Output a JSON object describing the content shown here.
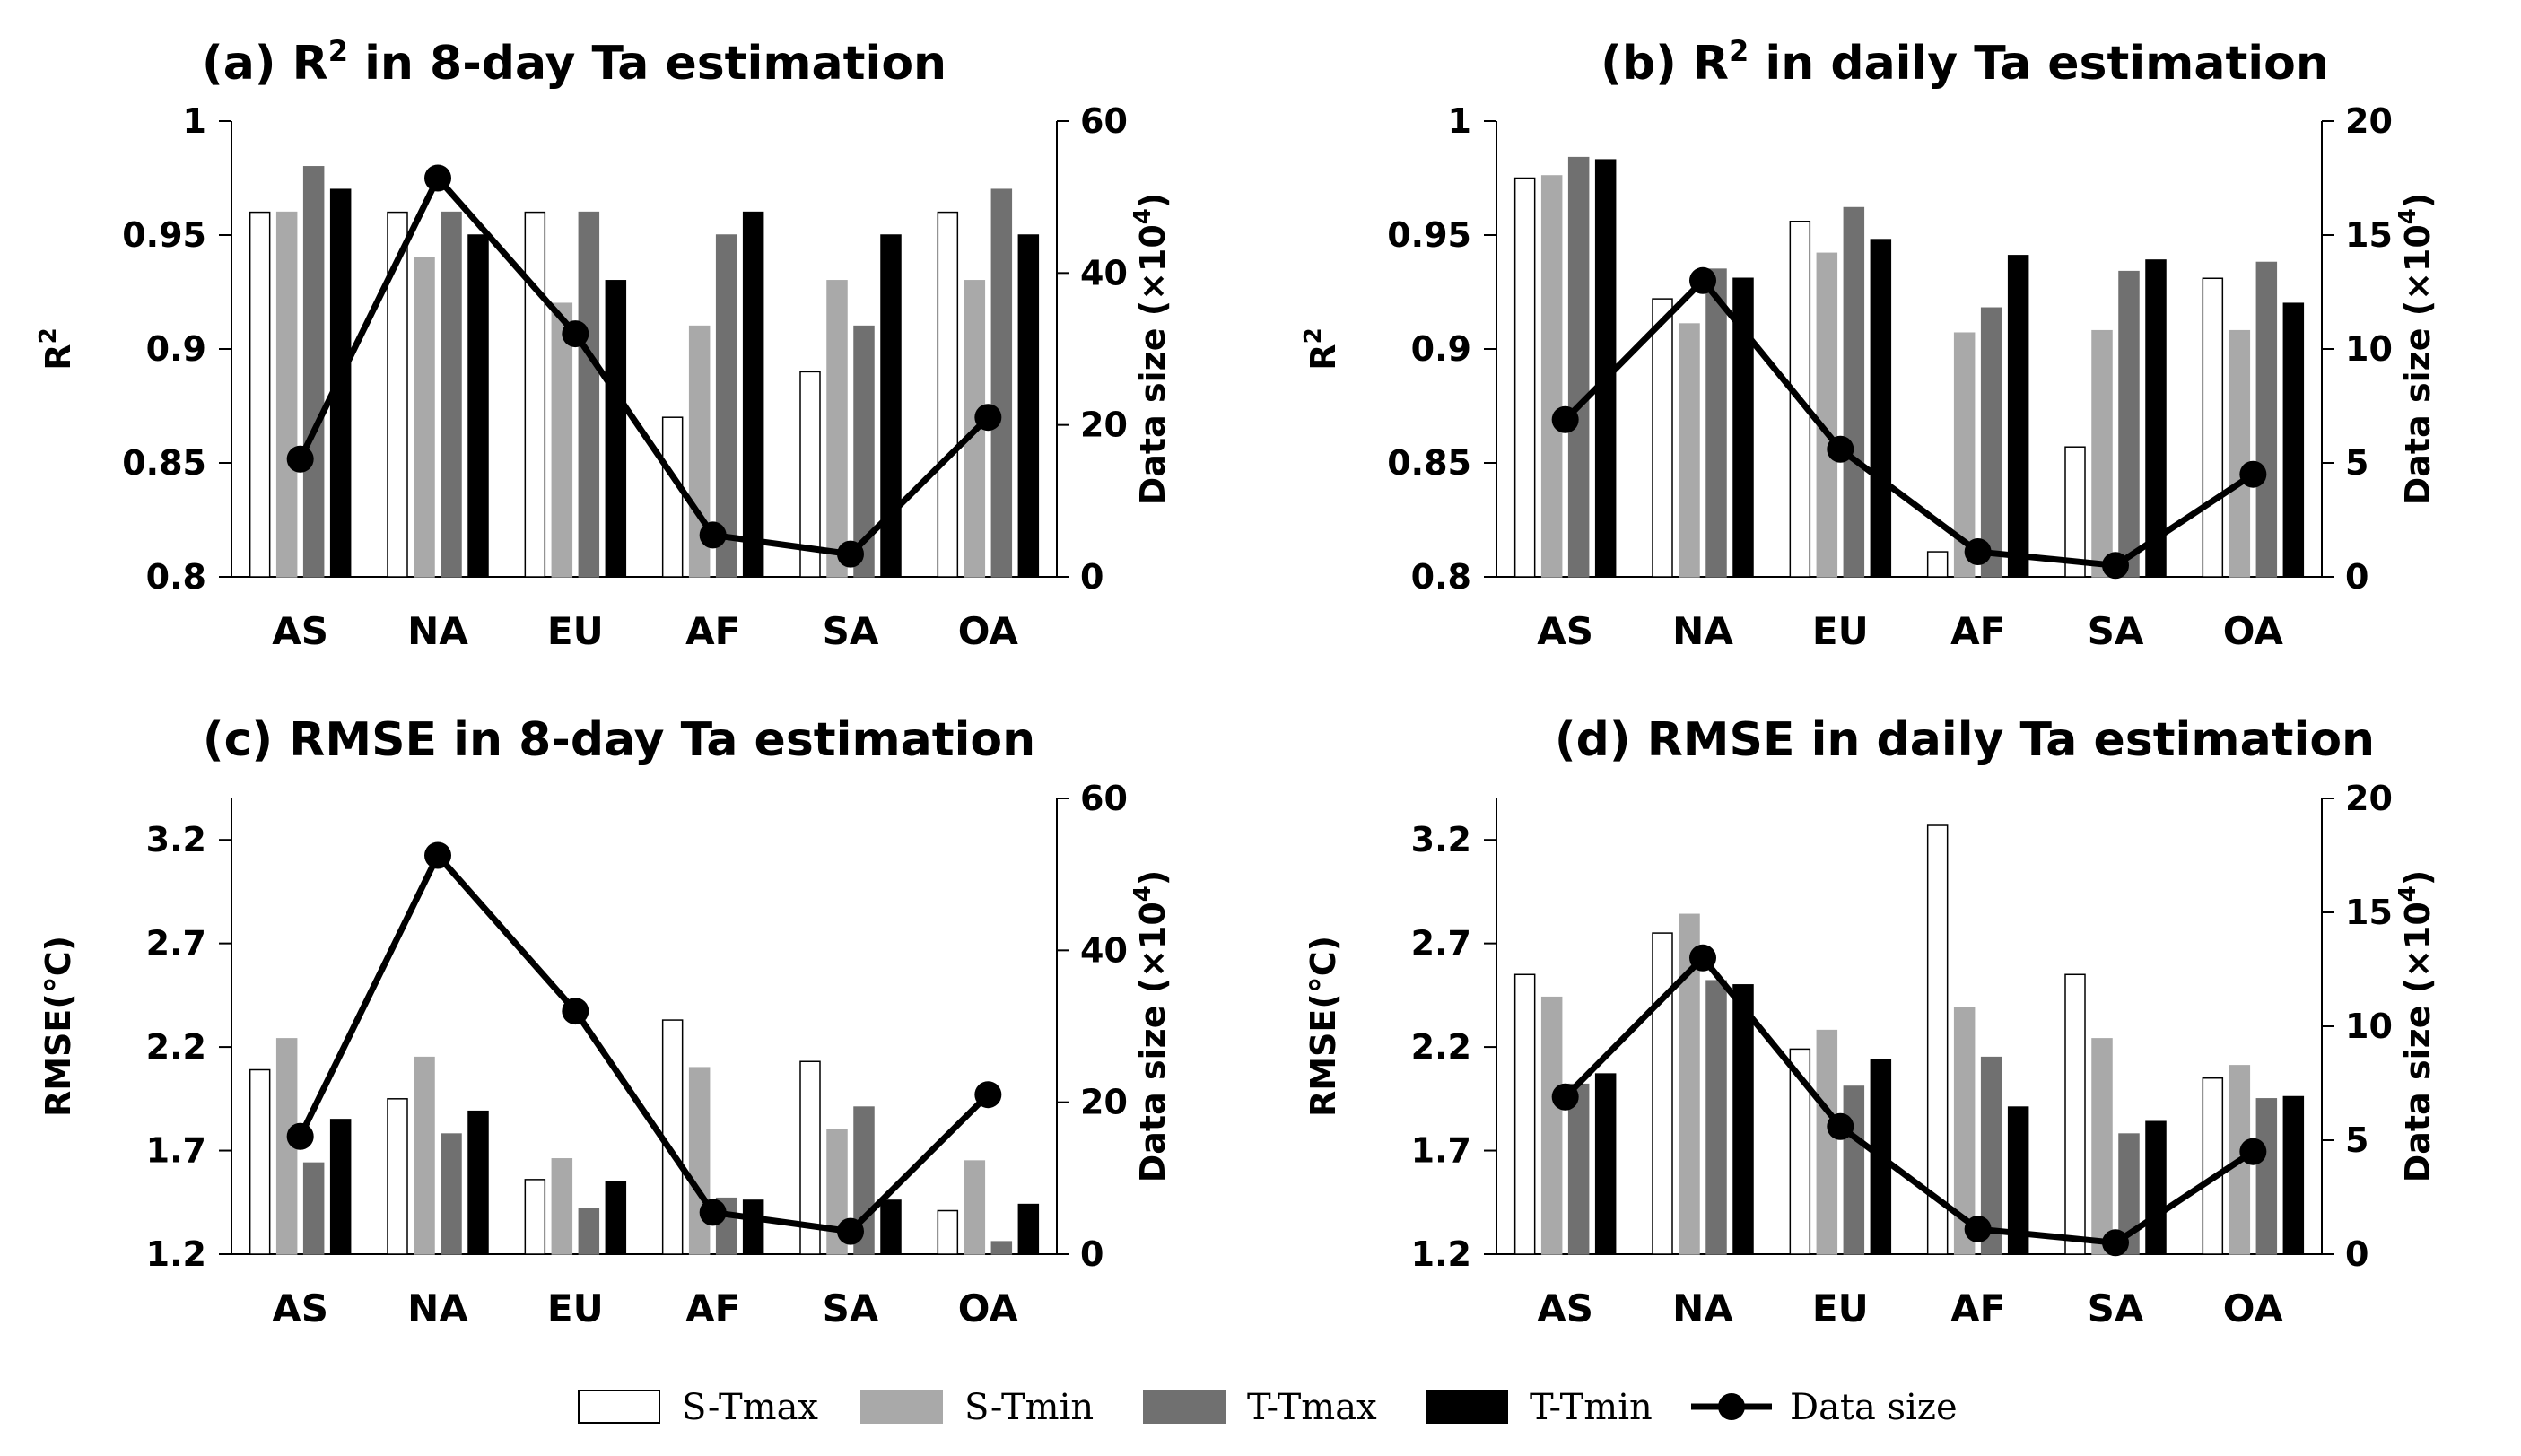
{
  "legend": [
    {
      "name": "S-Tmax",
      "label": "S-Tmax",
      "fill": "#ffffff",
      "stroke": "#000000"
    },
    {
      "name": "S-Tmin",
      "label": "S-Tmin",
      "fill": "#a9a9a9",
      "stroke": "#a9a9a9"
    },
    {
      "name": "T-Tmax",
      "label": "T-Tmax",
      "fill": "#707070",
      "stroke": "#707070"
    },
    {
      "name": "T-Tmin",
      "label": "T-Tmin",
      "fill": "#000000",
      "stroke": "#000000"
    },
    {
      "name": "Data size",
      "label": "Data size",
      "type": "line",
      "color": "#000000"
    }
  ],
  "chart_data": [
    {
      "id": "a",
      "type": "bar",
      "title_prefix": "(a) R",
      "title_sup": "2",
      "title_suffix": " in 8-day Ta estimation",
      "categories": [
        "AS",
        "NA",
        "EU",
        "AF",
        "SA",
        "OA"
      ],
      "ylabel": "R",
      "ylabel_sup": "2",
      "ylim": [
        0.8,
        1.0
      ],
      "yticks": [
        "0.8",
        "0.85",
        "0.9",
        "0.95",
        "1"
      ],
      "y2label": "Data size (×10",
      "y2label_sup": "4",
      "y2label_end": ")",
      "y2lim": [
        0,
        60
      ],
      "y2ticks": [
        "0",
        "20",
        "40",
        "60"
      ],
      "series": [
        {
          "name": "S-Tmax",
          "values": [
            0.96,
            0.96,
            0.96,
            0.87,
            0.89,
            0.96
          ]
        },
        {
          "name": "S-Tmin",
          "values": [
            0.96,
            0.94,
            0.92,
            0.91,
            0.93,
            0.93
          ]
        },
        {
          "name": "T-Tmax",
          "values": [
            0.98,
            0.96,
            0.96,
            0.95,
            0.91,
            0.97
          ]
        },
        {
          "name": "T-Tmin",
          "values": [
            0.97,
            0.95,
            0.93,
            0.96,
            0.95,
            0.95
          ]
        }
      ],
      "line": {
        "name": "Data size",
        "values": [
          15.5,
          52.5,
          32,
          5.5,
          3,
          21
        ]
      }
    },
    {
      "id": "b",
      "type": "bar",
      "title_prefix": "(b) R",
      "title_sup": "2",
      "title_suffix": " in daily Ta estimation",
      "categories": [
        "AS",
        "NA",
        "EU",
        "AF",
        "SA",
        "OA"
      ],
      "ylabel": "R",
      "ylabel_sup": "2",
      "ylim": [
        0.8,
        1.0
      ],
      "yticks": [
        "0.8",
        "0.85",
        "0.9",
        "0.95",
        "1"
      ],
      "y2label": "Data size (×10",
      "y2label_sup": "4",
      "y2label_end": ")",
      "y2lim": [
        0,
        20
      ],
      "y2ticks": [
        "0",
        "5",
        "10",
        "15",
        "20"
      ],
      "series": [
        {
          "name": "S-Tmax",
          "values": [
            0.975,
            0.922,
            0.956,
            0.811,
            0.857,
            0.931
          ]
        },
        {
          "name": "S-Tmin",
          "values": [
            0.976,
            0.911,
            0.942,
            0.907,
            0.908,
            0.908
          ]
        },
        {
          "name": "T-Tmax",
          "values": [
            0.984,
            0.935,
            0.962,
            0.918,
            0.934,
            0.938
          ]
        },
        {
          "name": "T-Tmin",
          "values": [
            0.983,
            0.931,
            0.948,
            0.941,
            0.939,
            0.92
          ]
        }
      ],
      "line": {
        "name": "Data size",
        "values": [
          6.9,
          13,
          5.6,
          1.1,
          0.5,
          4.5
        ]
      }
    },
    {
      "id": "c",
      "type": "bar",
      "title_prefix": "(c) RMSE in 8-day Ta estimation",
      "title_sup": "",
      "title_suffix": "",
      "categories": [
        "AS",
        "NA",
        "EU",
        "AF",
        "SA",
        "OA"
      ],
      "ylabel": "RMSE(°C)",
      "ylabel_sup": "",
      "ylim": [
        1.2,
        3.4
      ],
      "yticks": [
        "1.2",
        "1.7",
        "2.2",
        "2.7",
        "3.2"
      ],
      "y2label": "Data size (×10",
      "y2label_sup": "4",
      "y2label_end": ")",
      "y2lim": [
        0,
        60
      ],
      "y2ticks": [
        "0",
        "20",
        "40",
        "60"
      ],
      "series": [
        {
          "name": "S-Tmax",
          "values": [
            2.09,
            1.95,
            1.56,
            2.33,
            2.13,
            1.41
          ]
        },
        {
          "name": "S-Tmin",
          "values": [
            2.24,
            2.15,
            1.66,
            2.1,
            1.8,
            1.65
          ]
        },
        {
          "name": "T-Tmax",
          "values": [
            1.64,
            1.78,
            1.42,
            1.47,
            1.91,
            1.26
          ]
        },
        {
          "name": "T-Tmin",
          "values": [
            1.85,
            1.89,
            1.55,
            1.46,
            1.46,
            1.44
          ]
        }
      ],
      "line": {
        "name": "Data size",
        "values": [
          15.5,
          52.5,
          32,
          5.5,
          3,
          21
        ]
      }
    },
    {
      "id": "d",
      "type": "bar",
      "title_prefix": "(d) RMSE in daily Ta estimation",
      "title_sup": "",
      "title_suffix": "",
      "categories": [
        "AS",
        "NA",
        "EU",
        "AF",
        "SA",
        "OA"
      ],
      "ylabel": "RMSE(°C)",
      "ylabel_sup": "",
      "ylim": [
        1.2,
        3.4
      ],
      "yticks": [
        "1.2",
        "1.7",
        "2.2",
        "2.7",
        "3.2"
      ],
      "y2label": "Data size (×10",
      "y2label_sup": "4",
      "y2label_end": ")",
      "y2lim": [
        0,
        20
      ],
      "y2ticks": [
        "0",
        "5",
        "10",
        "15",
        "20"
      ],
      "series": [
        {
          "name": "S-Tmax",
          "values": [
            2.55,
            2.75,
            2.19,
            3.27,
            2.55,
            2.05
          ]
        },
        {
          "name": "S-Tmin",
          "values": [
            2.44,
            2.84,
            2.28,
            2.39,
            2.24,
            2.11
          ]
        },
        {
          "name": "T-Tmax",
          "values": [
            2.02,
            2.52,
            2.01,
            2.15,
            1.78,
            1.95
          ]
        },
        {
          "name": "T-Tmin",
          "values": [
            2.07,
            2.5,
            2.14,
            1.91,
            1.84,
            1.96
          ]
        }
      ],
      "line": {
        "name": "Data size",
        "values": [
          6.9,
          13,
          5.6,
          1.1,
          0.5,
          4.5
        ]
      }
    }
  ]
}
